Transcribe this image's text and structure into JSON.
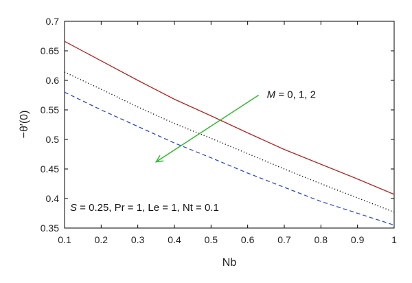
{
  "chart_data": {
    "type": "line",
    "title": "",
    "xlabel": "Nb",
    "ylabel": "−θ′(0)",
    "xlim": [
      0.1,
      1
    ],
    "ylim": [
      0.35,
      0.7
    ],
    "xticks": [
      0.1,
      0.2,
      0.3,
      0.4,
      0.5,
      0.6,
      0.7,
      0.8,
      0.9,
      1
    ],
    "xtick_labels": [
      "0.1",
      "0.2",
      "0.3",
      "0.4",
      "0.5",
      "0.6",
      "0.7",
      "0.8",
      "0.9",
      "1"
    ],
    "yticks": [
      0.35,
      0.4,
      0.45,
      0.5,
      0.55,
      0.6,
      0.65,
      0.7
    ],
    "ytick_labels": [
      "0.35",
      "0.4",
      "0.45",
      "0.5",
      "0.55",
      "0.6",
      "0.65",
      "0.7"
    ],
    "grid": false,
    "legend": "none",
    "x": [
      0.1,
      0.2,
      0.3,
      0.4,
      0.5,
      0.6,
      0.7,
      0.8,
      0.9,
      1.0
    ],
    "series": [
      {
        "style": "solid",
        "color": "#b22222",
        "values": [
          0.666,
          0.633,
          0.6,
          0.568,
          0.54,
          0.511,
          0.483,
          0.458,
          0.433,
          0.407
        ]
      },
      {
        "style": "dotted",
        "color": "#111111",
        "values": [
          0.614,
          0.585,
          0.555,
          0.527,
          0.502,
          0.476,
          0.45,
          0.425,
          0.401,
          0.377
        ]
      },
      {
        "style": "dashed",
        "color": "#2a45d6",
        "values": [
          0.58,
          0.55,
          0.522,
          0.494,
          0.469,
          0.443,
          0.419,
          0.395,
          0.375,
          0.355
        ]
      }
    ],
    "annotations": {
      "arrow_label": {
        "italic": "M",
        "rest": " = 0, 1, 2"
      },
      "arrow": {
        "from": [
          0.63,
          0.575
        ],
        "to": [
          0.35,
          0.462
        ],
        "color": "#33bb33"
      },
      "params": {
        "s_sym": "S",
        "s_rest": " = 0.25, Pr = 1, Le = 1, Nt = 0.1",
        "x": 0.115,
        "y": 0.385
      }
    }
  }
}
